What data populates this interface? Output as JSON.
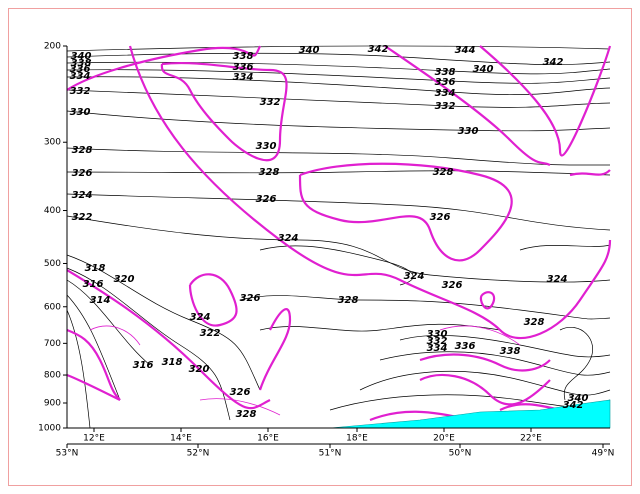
{
  "chart_data": {
    "type": "contour",
    "ylim": [
      1000,
      200
    ],
    "log_y": true,
    "yticks": [
      200,
      300,
      400,
      500,
      600,
      700,
      800,
      900,
      1000
    ],
    "x_labels_lon": [
      "12°E",
      "14°E",
      "16°E",
      "18°E",
      "20°E",
      "22°E"
    ],
    "x_labels_lat": [
      "53°N",
      "52°N",
      "51°N",
      "50°N",
      "49°N"
    ],
    "contour_labels": [
      340,
      338,
      336,
      334,
      332,
      330,
      328,
      326,
      324,
      322,
      318,
      316,
      314,
      320,
      338,
      336,
      334,
      340,
      342,
      344,
      342,
      340,
      338,
      336,
      334,
      332,
      332,
      330,
      330,
      328,
      328,
      326,
      326,
      324,
      324,
      326,
      324,
      328,
      326,
      324,
      322,
      316,
      318,
      320,
      328,
      330,
      332,
      334,
      336,
      338,
      326,
      328,
      340,
      342
    ],
    "line_color": "#000000",
    "zero_line_color": "#e020d0",
    "terrain_color": "#00ffff"
  }
}
